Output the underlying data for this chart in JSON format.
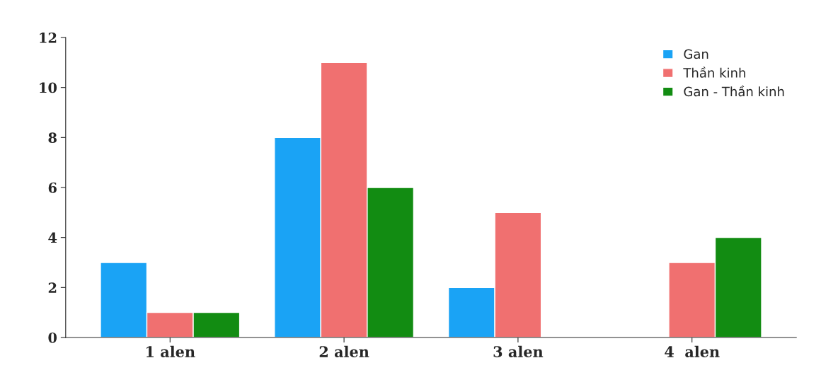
{
  "chart_data": {
    "type": "bar",
    "categories": [
      "1 alen",
      "2 alen",
      "3 alen",
      "4  alen"
    ],
    "series": [
      {
        "name": "Gan",
        "color": "#1aa3f5",
        "values": [
          3,
          8,
          2,
          null
        ]
      },
      {
        "name": "Thần kinh",
        "color": "#f07070",
        "values": [
          1,
          11,
          5,
          3
        ]
      },
      {
        "name": "Gan - Thần kinh",
        "color": "#128c12",
        "values": [
          1,
          6,
          null,
          4
        ]
      }
    ],
    "ylim": [
      0,
      12
    ],
    "yticks": [
      0,
      2,
      4,
      6,
      8,
      10,
      12
    ],
    "grid": false,
    "legend": "top right"
  }
}
